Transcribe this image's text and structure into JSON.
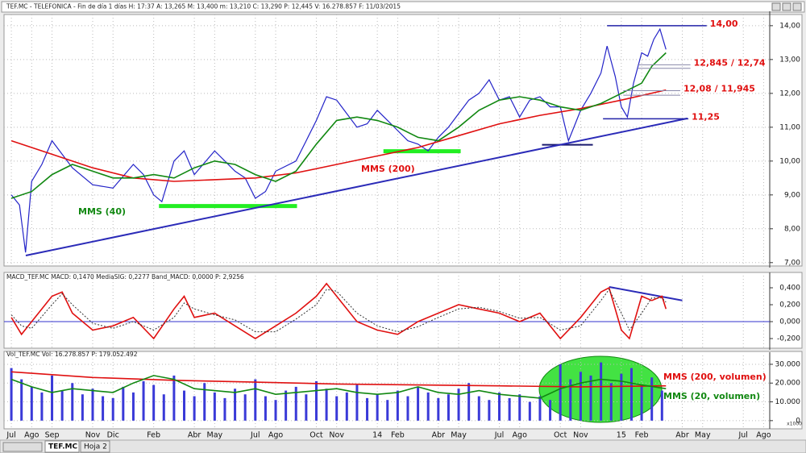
{
  "window": {
    "tabs": [
      "TEF.MC",
      "Hoja 2"
    ]
  },
  "chart_data": [
    {
      "type": "line",
      "title": "TEF.MC - TELEFONICA - Fin de día 1 días  H: 17:37  A: 13,265  M: 13,400  m: 13,210  C: 13,290  P: 12,445  V: 16.278.857  F: 11/03/2015",
      "xlim": [
        -0.36,
        37.3
      ],
      "ylim": [
        6.9,
        14.33
      ],
      "yticks": [
        {
          "value": 7,
          "label": "7,00"
        },
        {
          "value": 8,
          "label": "8,00"
        },
        {
          "value": 9,
          "label": "9,00"
        },
        {
          "value": 10,
          "label": "10,00"
        },
        {
          "value": 11,
          "label": "11,00"
        },
        {
          "value": 12,
          "label": "12,00"
        },
        {
          "value": 13,
          "label": "13,00"
        },
        {
          "value": 14,
          "label": "14,00"
        }
      ],
      "grid": true,
      "series": [
        {
          "color": "#2323c8",
          "style": "line",
          "x": [
            0,
            0.4,
            0.7,
            1,
            1.5,
            2,
            2.5,
            3,
            4,
            5,
            6,
            6.5,
            7,
            7.4,
            8,
            8.5,
            9,
            10,
            10.5,
            11,
            11.5,
            12,
            12.5,
            13,
            14,
            14.5,
            15,
            15.5,
            16,
            16.5,
            17,
            17.5,
            18,
            18.5,
            19,
            19.5,
            20,
            20.5,
            21,
            21.5,
            22,
            22.5,
            23,
            23.5,
            24,
            24.5,
            25,
            25.5,
            26,
            26.5,
            27,
            27.4,
            27.8,
            28,
            28.5,
            29,
            29.3,
            29.7,
            30,
            30.3,
            30.6,
            31,
            31.3,
            31.6,
            31.9,
            32.2
          ],
          "values": [
            9.0,
            8.7,
            7.3,
            9.4,
            9.9,
            10.6,
            10.2,
            9.8,
            9.3,
            9.2,
            9.9,
            9.6,
            9.0,
            8.8,
            10.0,
            10.3,
            9.6,
            10.3,
            10.0,
            9.7,
            9.5,
            8.9,
            9.1,
            9.7,
            10.0,
            10.6,
            11.2,
            11.9,
            11.8,
            11.4,
            11.0,
            11.1,
            11.5,
            11.2,
            10.9,
            10.6,
            10.5,
            10.3,
            10.7,
            11.0,
            11.4,
            11.8,
            12.0,
            12.4,
            11.8,
            11.9,
            11.3,
            11.8,
            11.9,
            11.6,
            11.6,
            10.6,
            11.2,
            11.5,
            12.0,
            12.6,
            13.4,
            12.5,
            11.6,
            11.3,
            12.3,
            13.2,
            13.1,
            13.6,
            13.9,
            13.3
          ]
        },
        {
          "name": "MMS (200)",
          "color": "#e01010",
          "style": "line",
          "x": [
            0,
            2,
            4,
            6,
            8,
            10,
            12,
            14,
            16,
            18,
            20,
            22,
            24,
            26,
            28,
            30,
            32.2
          ],
          "values": [
            10.6,
            10.2,
            9.8,
            9.5,
            9.4,
            9.45,
            9.5,
            9.65,
            9.9,
            10.15,
            10.4,
            10.75,
            11.1,
            11.35,
            11.55,
            11.8,
            12.1
          ]
        },
        {
          "name": "MMS (40)",
          "color": "#118811",
          "style": "line",
          "x": [
            0,
            1,
            2,
            3,
            4,
            5,
            6,
            7,
            8,
            9,
            10,
            11,
            12,
            13,
            14,
            15,
            16,
            17,
            18,
            19,
            20,
            21,
            22,
            23,
            24,
            25,
            26,
            27,
            28,
            29,
            30,
            31,
            31.5,
            32.2
          ],
          "values": [
            8.9,
            9.1,
            9.6,
            9.9,
            9.7,
            9.5,
            9.5,
            9.6,
            9.5,
            9.8,
            10.0,
            9.9,
            9.6,
            9.4,
            9.7,
            10.5,
            11.2,
            11.3,
            11.2,
            11.0,
            10.7,
            10.6,
            11.0,
            11.5,
            11.8,
            11.9,
            11.8,
            11.6,
            11.5,
            11.7,
            12.0,
            12.3,
            12.8,
            13.2
          ]
        }
      ],
      "levels": [
        {
          "label": "14,00",
          "values": [
            14
          ],
          "x": [
            29.3,
            34.2
          ]
        },
        {
          "label": "12,845 / 12,74",
          "values": [
            12.845,
            12.74
          ],
          "x": [
            30.8,
            33.4
          ]
        },
        {
          "label": "12,08 / 11,945",
          "values": [
            12.08,
            11.945
          ],
          "x": [
            30.1,
            32.9
          ]
        },
        {
          "label": "11,25",
          "values": [
            11.25
          ],
          "x": [
            29.1,
            33.3
          ]
        }
      ],
      "trendlines": [
        {
          "x": [
            0.71,
            33.25
          ],
          "y": [
            7.21,
            11.26
          ],
          "color": "#2b2bb8"
        }
      ],
      "supports": [
        {
          "x": [
            7.26,
            14.05
          ],
          "y": 8.67,
          "color": "#22ee22"
        },
        {
          "x": [
            18.3,
            22.1
          ],
          "y": 10.29,
          "color": "#22ee22"
        },
        {
          "x": [
            26.1,
            28.6
          ],
          "y": 10.48,
          "color": "#1a1a6e"
        }
      ]
    },
    {
      "type": "line",
      "title": "MACD_TEF.MC  MACD: 0,1470  MediaSIG: 0,2277  Band_MACD: 0,0000  P: 2,9256",
      "xlim": [
        -0.36,
        37.3
      ],
      "ylim": [
        -0.314,
        0.543
      ],
      "yticks": [
        {
          "value": -0.2,
          "label": "-0,200"
        },
        {
          "value": 0,
          "label": "0,000"
        },
        {
          "value": 0.2,
          "label": "0,200"
        },
        {
          "value": 0.4,
          "label": "0,400"
        }
      ],
      "grid": true,
      "zero_line": true,
      "series": [
        {
          "color": "#e01010",
          "style": "line",
          "x": [
            0,
            0.5,
            1,
            2,
            2.5,
            3,
            4,
            5,
            6,
            7,
            8,
            8.5,
            9,
            10,
            11,
            12,
            13,
            14,
            15,
            15.5,
            16,
            17,
            18,
            19,
            20,
            21,
            22,
            23,
            24,
            25,
            26,
            27,
            28,
            29,
            29.4,
            30,
            30.4,
            31,
            31.5,
            32,
            32.2
          ],
          "values": [
            0.05,
            -0.15,
            0.0,
            0.3,
            0.35,
            0.1,
            -0.1,
            -0.05,
            0.05,
            -0.2,
            0.15,
            0.3,
            0.05,
            0.1,
            -0.05,
            -0.2,
            -0.05,
            0.1,
            0.3,
            0.45,
            0.3,
            0.0,
            -0.1,
            -0.15,
            0.0,
            0.1,
            0.2,
            0.15,
            0.1,
            0.0,
            0.1,
            -0.2,
            0.05,
            0.35,
            0.4,
            -0.1,
            -0.2,
            0.3,
            0.25,
            0.3,
            0.15
          ]
        },
        {
          "color": "#333333",
          "style": "dashed",
          "x": [
            0,
            0.5,
            1,
            2,
            2.5,
            3,
            4,
            5,
            6,
            7,
            8,
            8.5,
            9,
            10,
            11,
            12,
            13,
            14,
            15,
            15.5,
            16,
            17,
            18,
            19,
            20,
            21,
            22,
            23,
            24,
            25,
            26,
            27,
            28,
            29,
            29.4,
            30,
            30.4,
            31,
            31.5,
            32,
            32.2
          ],
          "values": [
            0.08,
            -0.05,
            -0.08,
            0.2,
            0.33,
            0.2,
            -0.02,
            -0.08,
            0.0,
            -0.1,
            0.05,
            0.22,
            0.15,
            0.08,
            0.02,
            -0.12,
            -0.12,
            0.03,
            0.2,
            0.38,
            0.36,
            0.1,
            -0.05,
            -0.12,
            -0.06,
            0.05,
            0.15,
            0.17,
            0.12,
            0.04,
            0.05,
            -0.1,
            -0.05,
            0.25,
            0.38,
            0.1,
            -0.1,
            0.1,
            0.28,
            0.28,
            0.23
          ]
        }
      ],
      "trendlines": [
        {
          "x": [
            29.4,
            33.0
          ],
          "y": [
            0.41,
            0.25
          ],
          "color": "#2b2bb8"
        }
      ]
    },
    {
      "type": "bar",
      "title": "Vol_TEF.MC  Vol: 16.278.857  P: 179.052.492",
      "y_unit": "x1000",
      "xlim": [
        -0.36,
        37.3
      ],
      "ylim": [
        -3500,
        34700
      ],
      "yticks": [
        0,
        {
          "value": 10000,
          "label": "10.000"
        },
        {
          "value": 20000,
          "label": "20.000"
        },
        {
          "value": 30000,
          "label": "30.000"
        }
      ],
      "xticks": [
        {
          "value": 0,
          "label": "Jul"
        },
        {
          "value": 1,
          "label": "Ago"
        },
        {
          "value": 2,
          "label": "Sep"
        },
        {
          "value": 4,
          "label": "Nov"
        },
        {
          "value": 5,
          "label": "Dic"
        },
        {
          "value": 7,
          "label": "Feb"
        },
        {
          "value": 9,
          "label": "Abr"
        },
        {
          "value": 10,
          "label": "May"
        },
        {
          "value": 12,
          "label": "Jul"
        },
        {
          "value": 13,
          "label": "Ago"
        },
        {
          "value": 15,
          "label": "Oct"
        },
        {
          "value": 16,
          "label": "Nov"
        },
        {
          "value": 18,
          "label": "14"
        },
        {
          "value": 19,
          "label": "Feb"
        },
        {
          "value": 21,
          "label": "Abr"
        },
        {
          "value": 22,
          "label": "May"
        },
        {
          "value": 24,
          "label": "Jul"
        },
        {
          "value": 25,
          "label": "Ago"
        },
        {
          "value": 27,
          "label": "Oct"
        },
        {
          "value": 28,
          "label": "Nov"
        },
        {
          "value": 30,
          "label": "15"
        },
        {
          "value": 31,
          "label": "Feb"
        },
        {
          "value": 33,
          "label": "Abr"
        },
        {
          "value": 34,
          "label": "May"
        },
        {
          "value": 36,
          "label": "Jul"
        },
        {
          "value": 37,
          "label": "Ago"
        }
      ],
      "grid": true,
      "series": [
        {
          "color": "#3a3ad8",
          "style": "bar",
          "x": [
            0,
            0.5,
            1,
            1.5,
            2,
            2.5,
            3,
            3.5,
            4,
            4.5,
            5,
            5.5,
            6,
            6.5,
            7,
            7.5,
            8,
            8.5,
            9,
            9.5,
            10,
            10.5,
            11,
            11.5,
            12,
            12.5,
            13,
            13.5,
            14,
            14.5,
            15,
            15.5,
            16,
            16.5,
            17,
            17.5,
            18,
            18.5,
            19,
            19.5,
            20,
            20.5,
            21,
            21.5,
            22,
            22.5,
            23,
            23.5,
            24,
            24.5,
            25,
            25.5,
            26,
            26.5,
            27,
            27.5,
            28,
            28.5,
            29,
            29.5,
            30,
            30.5,
            31,
            31.5,
            32
          ],
          "values": [
            28000,
            22000,
            18000,
            15000,
            24000,
            16000,
            20000,
            14000,
            17000,
            13000,
            12000,
            18000,
            15000,
            21000,
            19000,
            14000,
            24000,
            16000,
            13000,
            20000,
            15000,
            12000,
            17000,
            14000,
            22000,
            13000,
            11000,
            16000,
            18000,
            14000,
            21000,
            17000,
            13000,
            15000,
            19000,
            12000,
            14000,
            11000,
            16000,
            13000,
            18000,
            15000,
            12000,
            14000,
            17000,
            20000,
            13000,
            11000,
            15000,
            12000,
            14000,
            10000,
            13000,
            11000,
            30000,
            22000,
            26000,
            24000,
            31000,
            20000,
            25000,
            28000,
            19000,
            23000,
            16000
          ]
        },
        {
          "name": "MMS (200, volumen)",
          "color": "#e01010",
          "style": "line",
          "x": [
            0,
            4,
            8,
            12,
            16,
            20,
            24,
            28,
            32.2
          ],
          "values": [
            26000,
            23000,
            21500,
            20500,
            19500,
            19000,
            18500,
            18000,
            18500
          ]
        },
        {
          "name": "MMS (20, volumen)",
          "color": "#118811",
          "style": "line",
          "x": [
            0,
            1,
            2,
            3,
            4,
            5,
            6,
            7,
            8,
            9,
            10,
            11,
            12,
            13,
            14,
            15,
            16,
            17,
            18,
            19,
            20,
            21,
            22,
            23,
            24,
            25,
            26,
            27,
            28,
            29,
            30,
            31,
            32.2
          ],
          "values": [
            22000,
            18000,
            15000,
            17000,
            16000,
            15000,
            20000,
            24000,
            22000,
            17000,
            16000,
            15000,
            17000,
            14000,
            15000,
            16000,
            17000,
            15000,
            14000,
            15000,
            18000,
            15000,
            14000,
            16000,
            14000,
            13000,
            12000,
            17000,
            20000,
            22000,
            21000,
            19000,
            17000
          ]
        }
      ]
    }
  ]
}
